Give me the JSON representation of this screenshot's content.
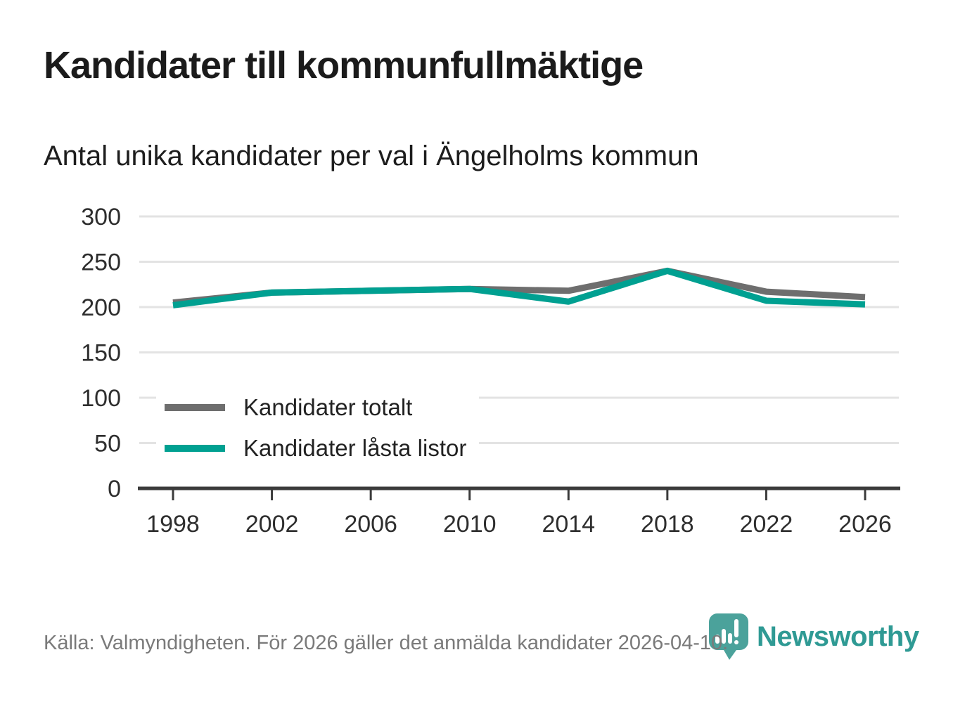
{
  "title": "Kandidater till kommunfullmäktige",
  "subtitle": "Antal unika kandidater per val i Ängelholms kommun",
  "footer": {
    "source_text": "Källa: Valmyndigheten. För 2026 gäller det anmälda kandidater 2026-04-10."
  },
  "logo": {
    "icon": "newsworthy-pin-bar-chart-icon",
    "brand": "Newsworthy"
  },
  "colors": {
    "total": "#6e6e6e",
    "locked": "#00a091",
    "grid": "#e3e3e3",
    "axis": "#3b3b3b",
    "tick_label": "#2e2e2e",
    "title_text": "#1b1b1b",
    "footer_text": "#7a7a7a",
    "brand_teal": "#2f9a94",
    "logo_bubble": "#4ba29b"
  },
  "chart_data": {
    "type": "line",
    "title": "Kandidater till kommunfullmäktige",
    "subtitle": "Antal unika kandidater per val i Ängelholms kommun",
    "x": [
      1998,
      2002,
      2006,
      2010,
      2014,
      2018,
      2022,
      2026
    ],
    "series": [
      {
        "name": "Kandidater totalt",
        "color_key": "total",
        "values": [
          205,
          216,
          218,
          220,
          218,
          240,
          217,
          211
        ]
      },
      {
        "name": "Kandidater låsta listor",
        "color_key": "locked",
        "values": [
          202,
          216,
          218,
          220,
          206,
          240,
          207,
          203
        ]
      }
    ],
    "xlabel": "",
    "ylabel": "",
    "ylim": [
      0,
      300
    ],
    "yticks": [
      0,
      50,
      100,
      150,
      200,
      250,
      300
    ],
    "grid": "horizontal",
    "legend_position": "inside-left"
  }
}
